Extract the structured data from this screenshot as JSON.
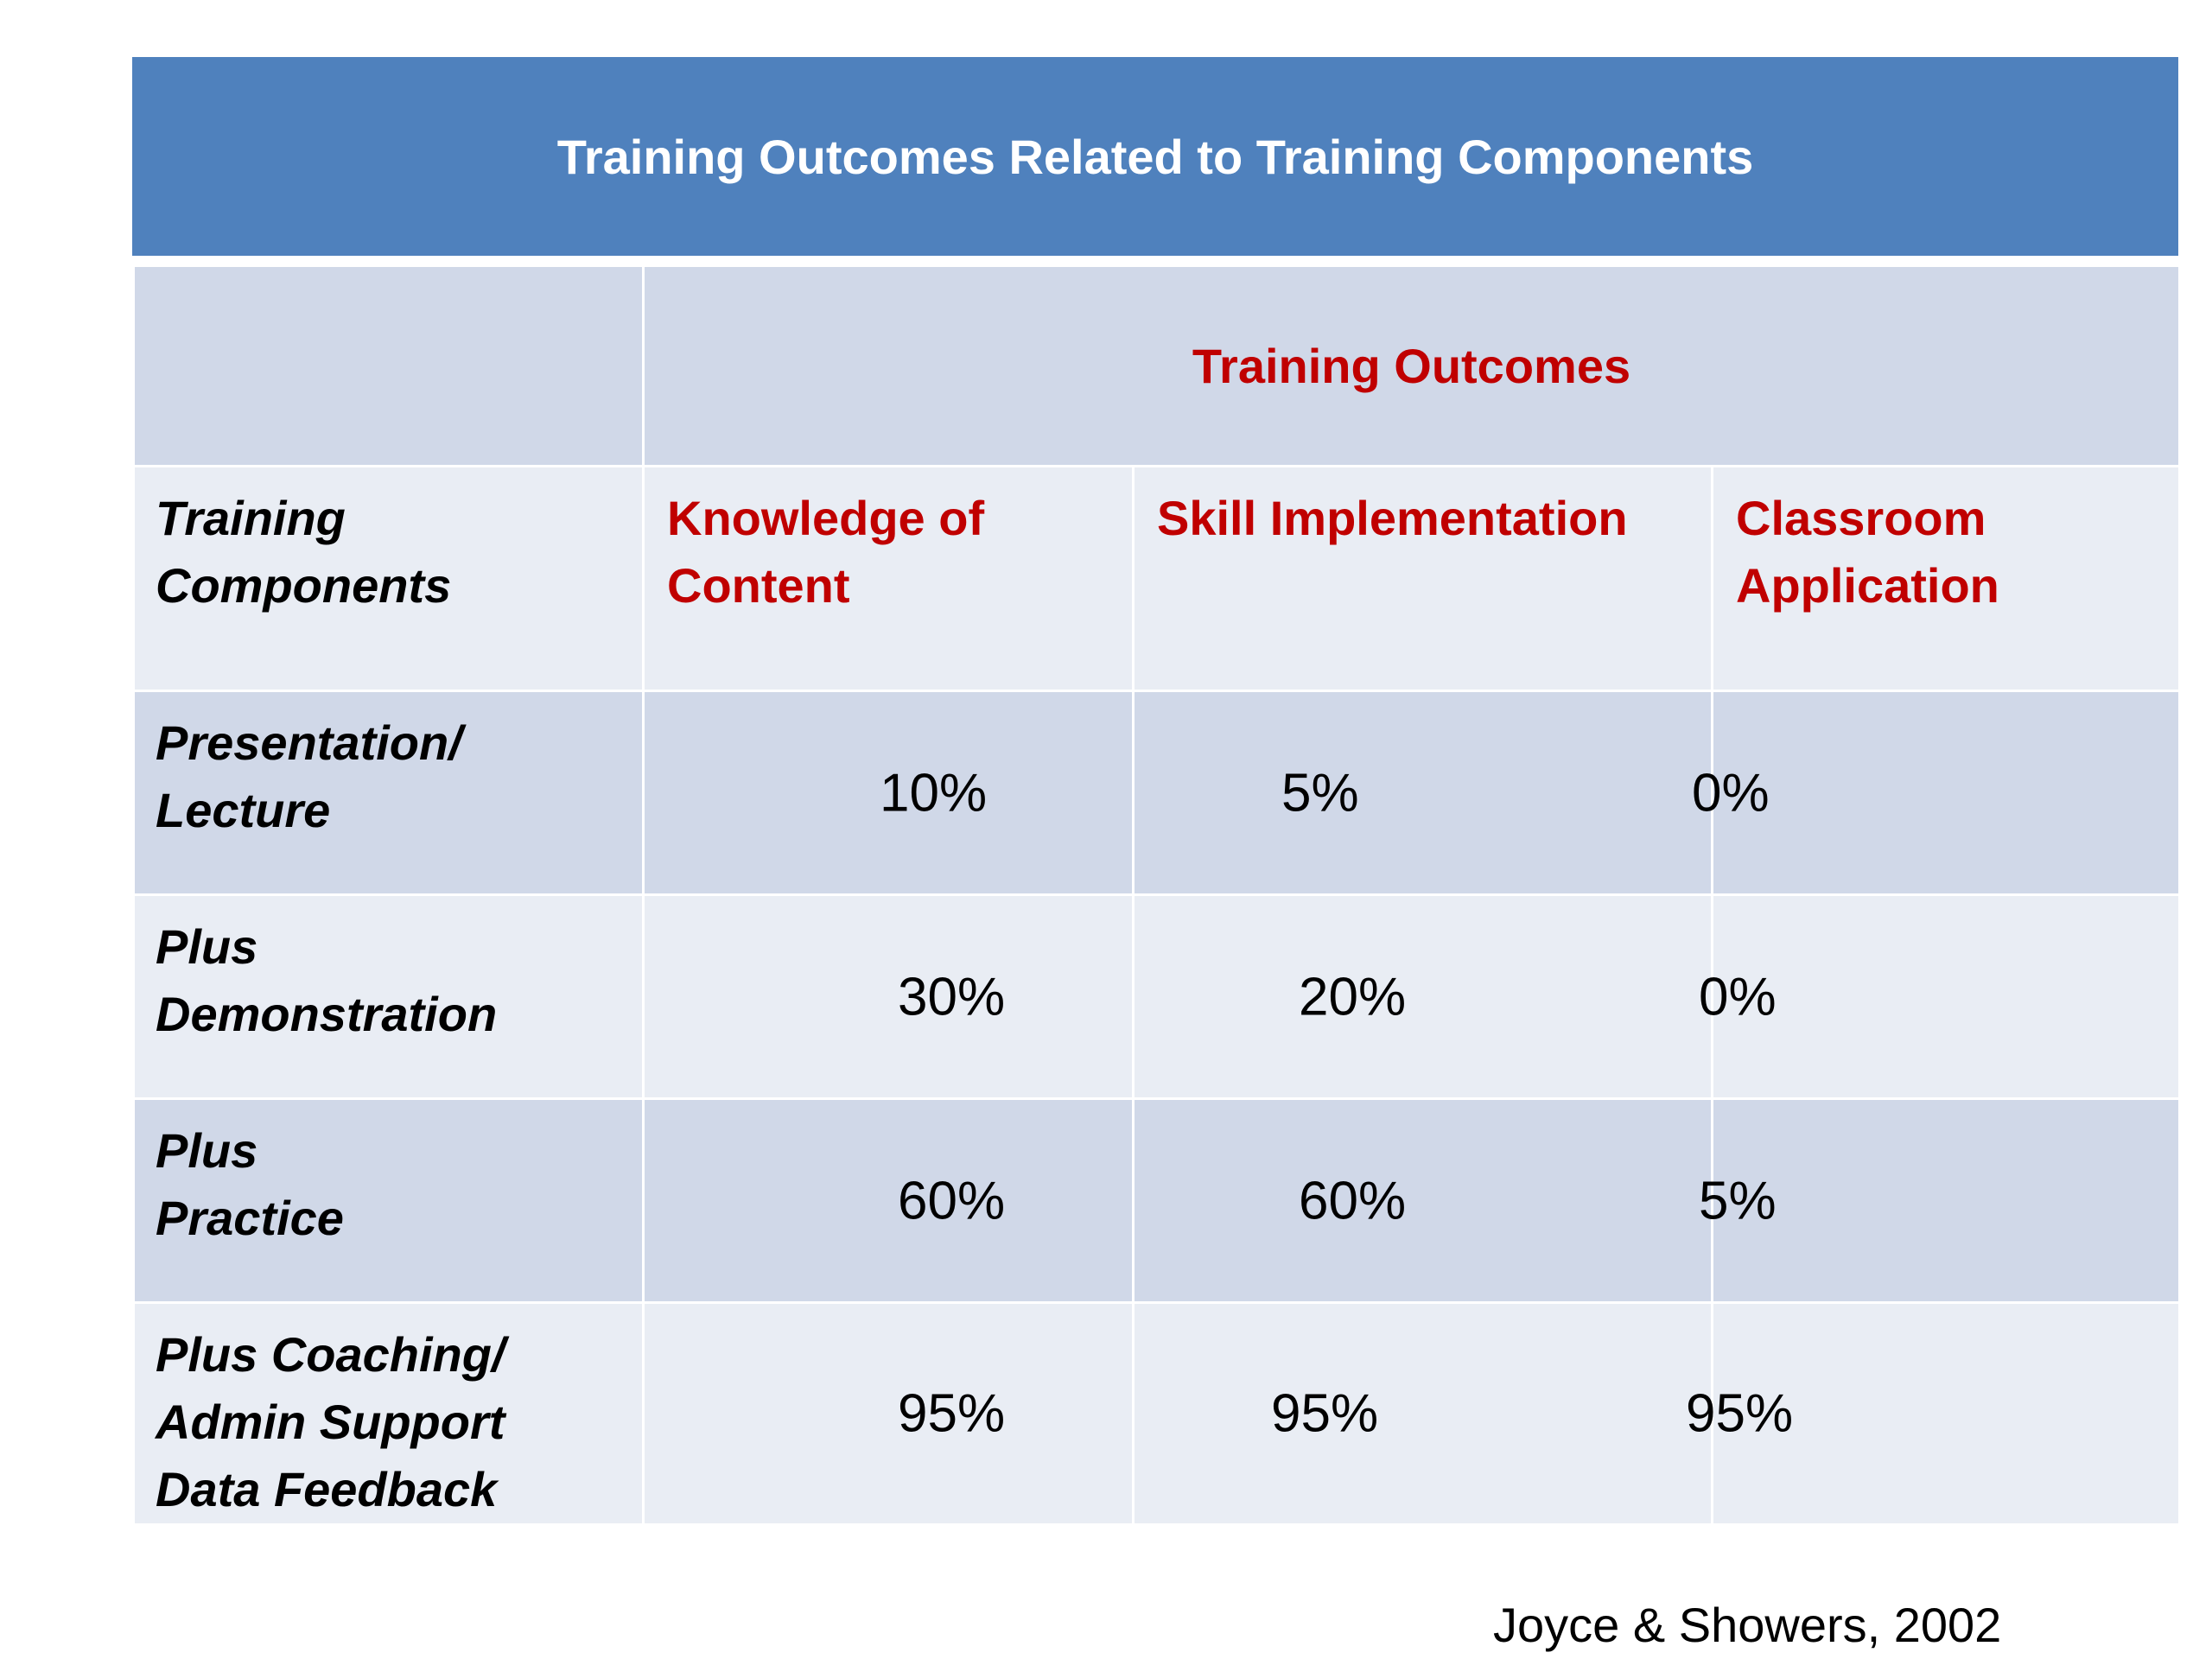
{
  "slide": {
    "title": "Training Outcomes Related to Training Components",
    "group_header": "Training Outcomes",
    "row_header_label": [
      "Training",
      "Components"
    ],
    "columns": [
      {
        "label_lines": [
          "Knowledge of",
          "Content"
        ]
      },
      {
        "label_lines": [
          "Skill Implementation"
        ]
      },
      {
        "label_lines": [
          "Classroom",
          "Application"
        ]
      }
    ],
    "rows": [
      {
        "label_lines": [
          "Presentation/",
          "Lecture"
        ],
        "values": [
          "10%",
          "5%",
          "0%"
        ]
      },
      {
        "label_lines": [
          "Plus",
          "Demonstration"
        ],
        "values": [
          "30%",
          "20%",
          "0%"
        ]
      },
      {
        "label_lines": [
          "Plus",
          "Practice"
        ],
        "values": [
          "60%",
          "60%",
          "5%"
        ]
      },
      {
        "label_lines": [
          "Plus Coaching/",
          "Admin Support",
          "Data Feedback"
        ],
        "values": [
          "95%",
          "95%",
          "95%"
        ]
      }
    ],
    "citation": "Joyce & Showers, 2002"
  },
  "colors": {
    "title_bar": "#4f81bd",
    "row_dark": "#d0d8e8",
    "row_light": "#e9edf4",
    "accent_red": "#c00000"
  }
}
